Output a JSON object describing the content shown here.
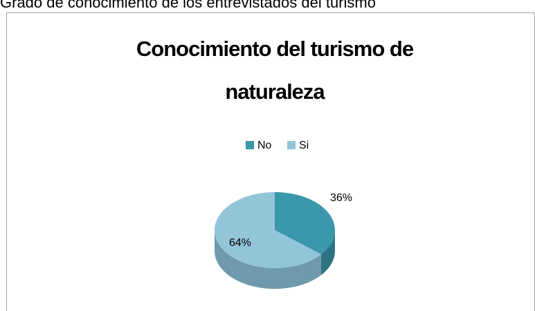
{
  "caption": "Grado de conocimiento de los entrevistados del turismo",
  "chart_data": {
    "type": "pie",
    "title": "Conocimiento del turismo de naturaleza",
    "categories": [
      "No",
      "Si"
    ],
    "values": [
      36,
      64
    ],
    "value_labels": [
      "36%",
      "64%"
    ],
    "colors": [
      "#3b97ab",
      "#93c5d9"
    ],
    "side_colors": [
      "#2d7384",
      "#6f9aab"
    ],
    "legend": "top",
    "three_d": true
  }
}
